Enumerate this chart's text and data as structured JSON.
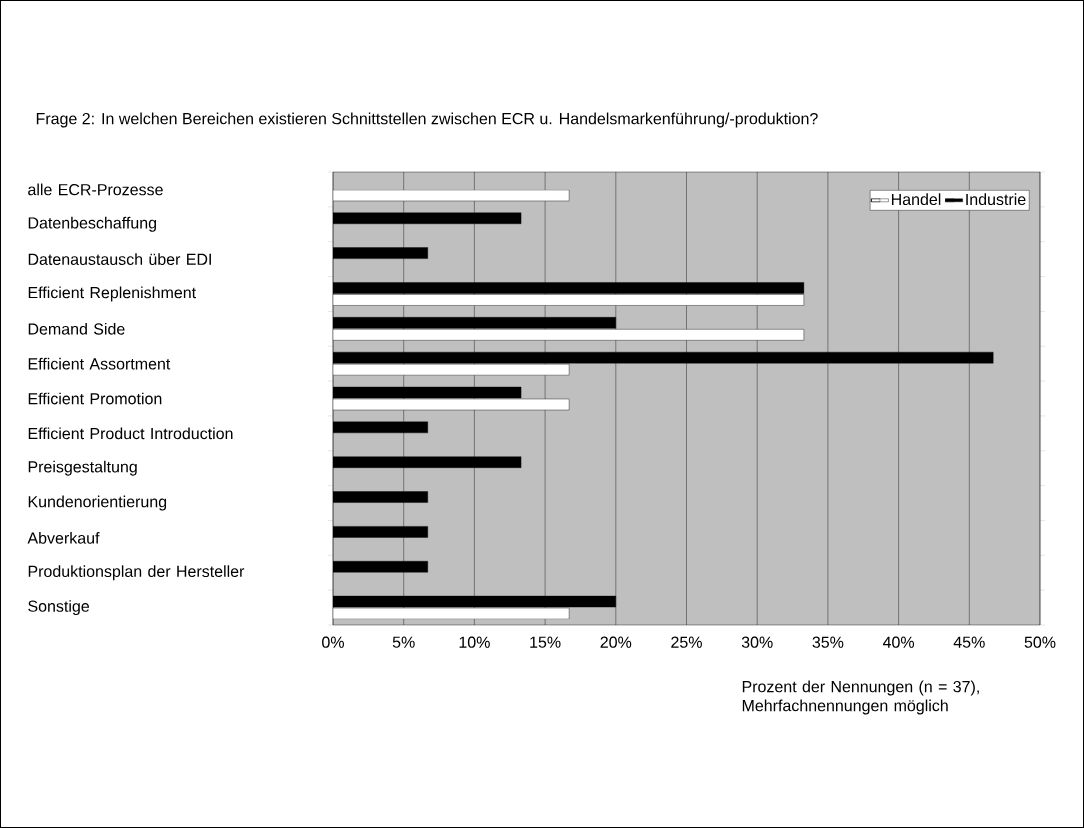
{
  "chart_data": {
    "type": "bar",
    "orientation": "horizontal",
    "title": "Frage 2: In welchen Bereichen existieren Schnittstellen zwischen ECR u. Handelsmarkenführung/-produktion?",
    "xlabel": "Prozent der Nennungen (n = 37), Mehrfachnennungen möglich",
    "categories": [
      "alle ECR-Prozesse",
      "Datenbeschaffung",
      "Datenaustausch über EDI",
      "Efficient Replenishment",
      "Demand Side",
      "Efficient Assortment",
      "Efficient Promotion",
      "Efficient Product Introduction",
      "Preisgestaltung",
      "Kundenorientierung",
      "Abverkauf",
      "Produktionsplan der Hersteller",
      "Sonstige"
    ],
    "series": [
      {
        "name": "Handel",
        "color": "#ffffff",
        "values": [
          16.7,
          null,
          null,
          33.3,
          33.3,
          16.7,
          16.7,
          null,
          null,
          null,
          null,
          null,
          16.7
        ]
      },
      {
        "name": "Industrie",
        "color": "#000000",
        "values": [
          null,
          13.3,
          6.7,
          33.3,
          20,
          46.7,
          13.3,
          6.7,
          13.3,
          6.7,
          6.7,
          6.7,
          20
        ]
      }
    ],
    "xlim": [
      0,
      50
    ],
    "xticks": [
      {
        "value": 0,
        "label": "0%"
      },
      {
        "value": 5,
        "label": "5%"
      },
      {
        "value": 10,
        "label": "10%"
      },
      {
        "value": 15,
        "label": "15%"
      },
      {
        "value": 20,
        "label": "20%"
      },
      {
        "value": 25,
        "label": "25%"
      },
      {
        "value": 30,
        "label": "30%"
      },
      {
        "value": 35,
        "label": "35%"
      },
      {
        "value": 40,
        "label": "40%"
      },
      {
        "value": 45,
        "label": "45%"
      },
      {
        "value": 50,
        "label": "50%"
      }
    ],
    "grid": "x",
    "legend": "top right"
  }
}
